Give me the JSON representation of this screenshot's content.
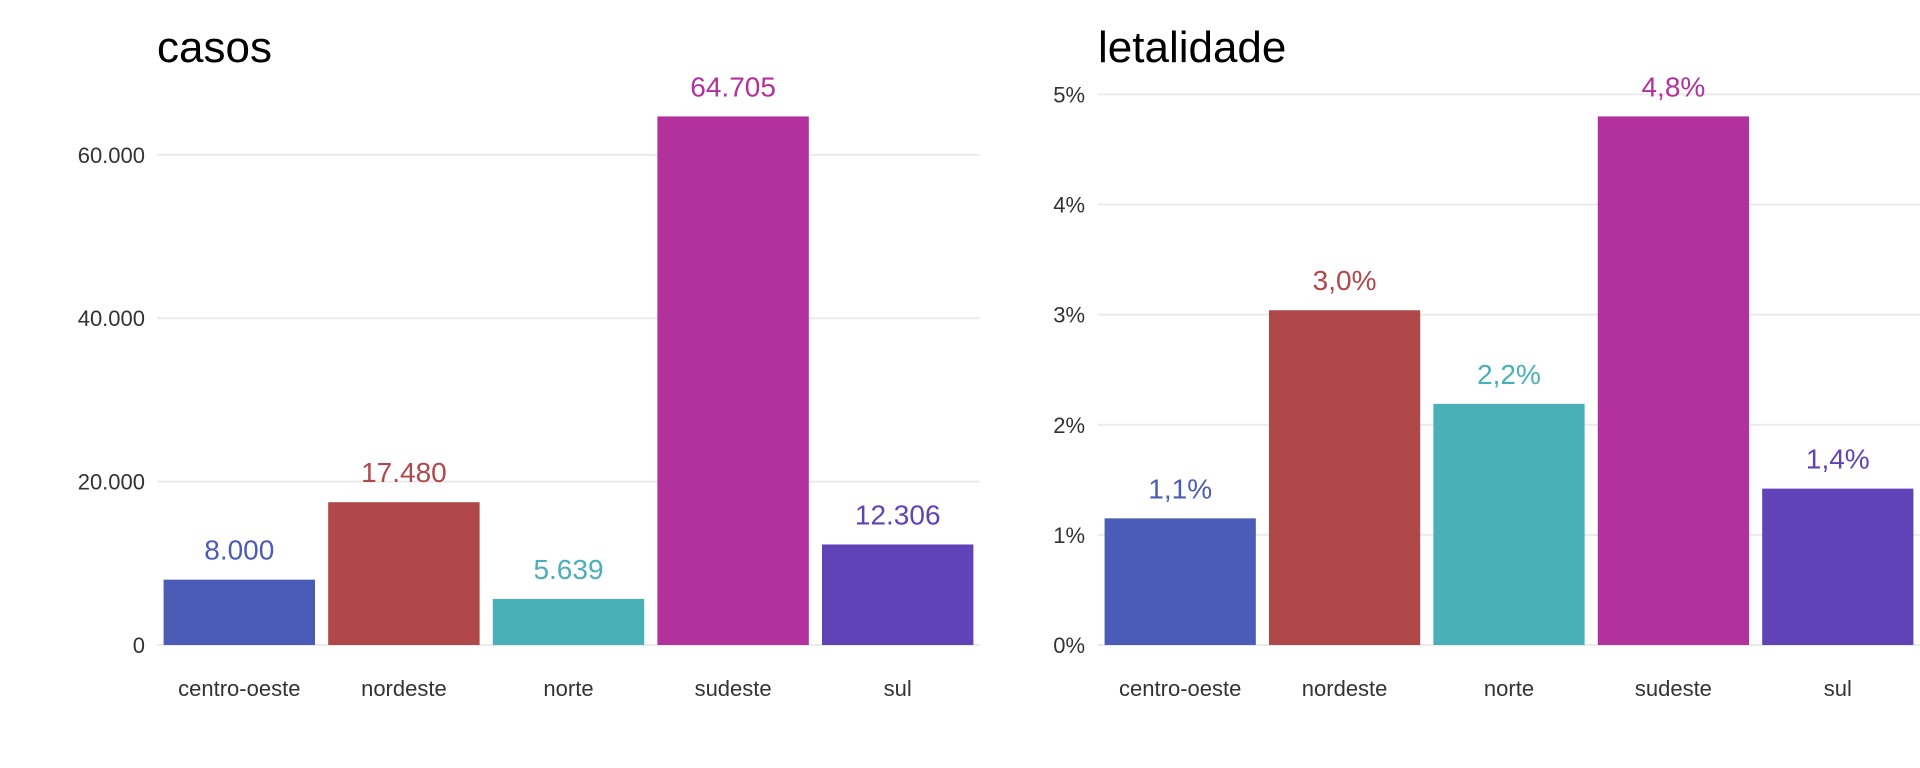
{
  "chart_data": [
    {
      "type": "bar",
      "title": "casos",
      "xlabel": "",
      "ylabel": "",
      "categories": [
        "centro-oeste",
        "nordeste",
        "norte",
        "sudeste",
        "sul"
      ],
      "values": [
        8000,
        17480,
        5639,
        64705,
        12306
      ],
      "value_labels": [
        "8.000",
        "17.480",
        "5.639",
        "64.705",
        "12.306"
      ],
      "colors": [
        "#4b5cb6",
        "#b04849",
        "#48b0b6",
        "#b3319c",
        "#6043b7"
      ],
      "ylim": [
        0,
        67941
      ],
      "yticks": [
        0,
        20000,
        40000,
        60000
      ],
      "ytick_labels": [
        "0",
        "20.000",
        "40.000",
        "60.000"
      ],
      "grid": true,
      "legend": "none"
    },
    {
      "type": "bar",
      "title": "letalidade",
      "xlabel": "",
      "ylabel": "",
      "categories": [
        "centro-oeste",
        "nordeste",
        "norte",
        "sudeste",
        "sul"
      ],
      "values": [
        1.15,
        3.04,
        2.19,
        4.8,
        1.42
      ],
      "value_labels": [
        "1,1%",
        "3,0%",
        "2,2%",
        "4,8%",
        "1,4%"
      ],
      "colors": [
        "#4b5cb6",
        "#b04849",
        "#48b0b6",
        "#b3319c",
        "#6043b7"
      ],
      "ylim": [
        0,
        5.04
      ],
      "yticks": [
        0,
        1,
        2,
        3,
        4,
        5
      ],
      "ytick_labels": [
        "0%",
        "1%",
        "2%",
        "3%",
        "4%",
        "5%"
      ],
      "grid": true,
      "legend": "none"
    }
  ]
}
